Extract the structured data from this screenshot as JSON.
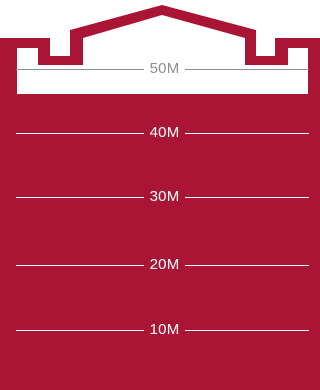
{
  "colors": {
    "building": "#ab1535",
    "interior": "#ffffff",
    "line_on_building": "#ffffff",
    "line_on_interior": "#8e8e8e"
  },
  "markers": [
    {
      "label": "50M"
    },
    {
      "label": "40M"
    },
    {
      "label": "30M"
    },
    {
      "label": "20M"
    },
    {
      "label": "10M"
    }
  ]
}
